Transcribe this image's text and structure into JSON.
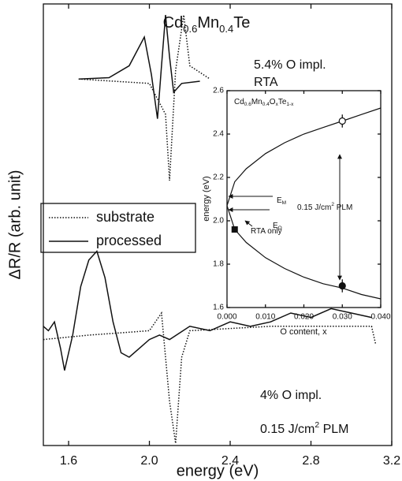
{
  "chart_data": [
    {
      "type": "line",
      "title": [
        "Cd",
        "0.6",
        "Mn",
        "0.4",
        "Te"
      ],
      "title_script": "sub",
      "x_label": "energy (eV)",
      "y_label": "ΔR/R (arb. unit)",
      "xlim": [
        1.475,
        3.2
      ],
      "ylim": [
        0,
        100
      ],
      "xticks": [
        1.6,
        {
          "value": 2.0,
          "label": "2.0"
        },
        2.4,
        2.8,
        3.2
      ],
      "legend": "left",
      "series": [
        {
          "name": "substrate",
          "style": "dotted",
          "color": "#111",
          "x": [
            1.65,
            2.0,
            2.08,
            2.1,
            2.13,
            2.17,
            2.2,
            2.3
          ],
          "values": [
            83,
            82,
            75,
            60,
            85,
            97.5,
            86,
            83
          ]
        },
        {
          "name": "processed",
          "style": "solid",
          "color": "#111",
          "x": [
            1.65,
            1.8,
            1.9,
            1.975,
            2.01,
            2.04,
            2.06,
            2.08,
            2.1,
            2.12,
            2.16,
            2.25
          ],
          "values": [
            83,
            83.3,
            86,
            92.5,
            84,
            74,
            86,
            97.5,
            88,
            80,
            82,
            82.5
          ]
        },
        {
          "style": "dotted",
          "color": "#111",
          "x": [
            1.475,
            1.7,
            2.0,
            2.06,
            2.1,
            2.13,
            2.16,
            2.2,
            2.6,
            3.0,
            3.1,
            3.12
          ],
          "values": [
            24,
            25,
            26,
            30,
            10,
            0.5,
            20,
            26,
            27,
            27,
            27,
            23
          ]
        },
        {
          "style": "solid",
          "color": "#111",
          "x": [
            1.475,
            1.5,
            1.53,
            1.56,
            1.58,
            1.62,
            1.66,
            1.7,
            1.74,
            1.78,
            1.82,
            1.86,
            1.9,
            1.95,
            2.0,
            2.05,
            2.1,
            2.2,
            2.3,
            2.4,
            2.5,
            2.6,
            2.7,
            2.8,
            2.9,
            3.0,
            3.1
          ],
          "values": [
            27,
            26,
            28,
            22,
            17,
            25,
            36,
            42,
            44,
            38,
            28,
            21,
            20,
            22,
            24,
            25,
            24,
            27,
            26,
            28,
            27,
            28,
            30,
            29,
            31,
            30,
            29
          ]
        }
      ],
      "annotations": [
        {
          "parts": [
            "5.4% O impl."
          ]
        },
        {
          "parts": [
            "RTA"
          ]
        },
        {
          "parts": [
            "4% O impl."
          ]
        },
        {
          "parts": [
            "0.15 J/cm",
            "2",
            " PLM"
          ],
          "script": "sup"
        }
      ]
    },
    {
      "type": "line",
      "title": [
        "Cd",
        "0.6",
        "Mn",
        "0.4",
        "O",
        "x",
        "Te",
        "1-x"
      ],
      "title_script": "sub",
      "x_label": "O content, x",
      "y_label": "energy (eV)",
      "xlim": [
        0,
        0.04
      ],
      "ylim": [
        1.6,
        2.6
      ],
      "xticks": [
        {
          "value": 0,
          "label": "0.000"
        },
        {
          "value": 0.01,
          "label": "0.010"
        },
        {
          "value": 0.02,
          "label": "0.020"
        },
        {
          "value": 0.03,
          "label": "0.030"
        },
        {
          "value": 0.04,
          "label": "0.040"
        }
      ],
      "yticks": [
        1.6,
        1.8,
        {
          "value": 2.0,
          "label": "2.0"
        },
        2.2,
        2.4,
        2.6
      ],
      "series": [
        {
          "style": "solid",
          "color": "#111",
          "x": [
            0,
            0.002,
            0.005,
            0.01,
            0.015,
            0.02,
            0.025,
            0.03,
            0.035,
            0.04
          ],
          "values": [
            2.07,
            2.18,
            2.24,
            2.31,
            2.36,
            2.4,
            2.43,
            2.46,
            2.49,
            2.52
          ]
        },
        {
          "style": "solid",
          "color": "#111",
          "x": [
            0,
            0.002,
            0.005,
            0.01,
            0.015,
            0.02,
            0.025,
            0.03,
            0.035,
            0.04
          ],
          "values": [
            2.07,
            1.96,
            1.9,
            1.83,
            1.78,
            1.74,
            1.71,
            1.69,
            1.66,
            1.64
          ]
        }
      ],
      "points": [
        {
          "x": 0.03,
          "y": 2.46,
          "error": 0.03,
          "marker": "open-circle"
        },
        {
          "x": 0.03,
          "y": 1.7,
          "error": 0.03,
          "marker": "filled-circle"
        },
        {
          "x": 0.002,
          "y": 1.96,
          "marker": "filled-square"
        }
      ],
      "annotations": [
        {
          "parts": [
            "E",
            "M"
          ],
          "script": "sub"
        },
        {
          "parts": [
            "E",
            "O"
          ],
          "script": "sub"
        },
        {
          "parts": [
            "RTA only"
          ]
        },
        {
          "parts": [
            "0.15 J/cm",
            "2",
            " PLM"
          ],
          "script": "sup"
        }
      ]
    }
  ]
}
